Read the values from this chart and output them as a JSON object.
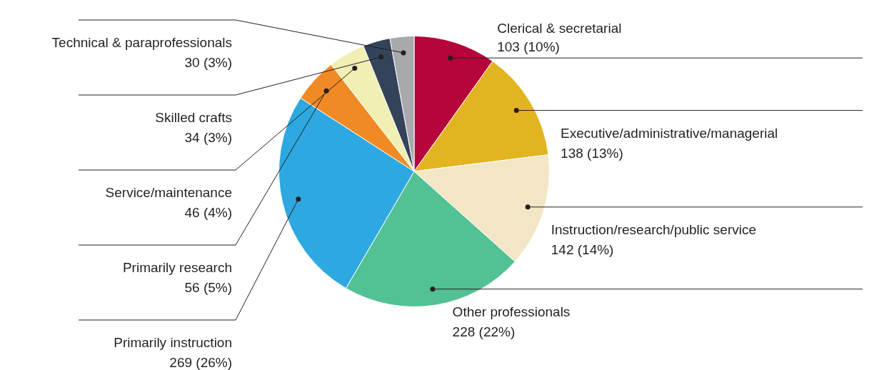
{
  "chart_data": {
    "type": "pie",
    "categories": [
      "Clerical & secretarial",
      "Executive/administrative/managerial",
      "Instruction/research/public service",
      "Other professionals",
      "Primarily instruction",
      "Primarily research",
      "Service/maintenance",
      "Skilled crafts",
      "Technical & paraprofessionals"
    ],
    "values": [
      103,
      138,
      142,
      228,
      269,
      56,
      46,
      34,
      30
    ],
    "value_labels": [
      "103 (10%)",
      "138 (13%)",
      "142 (14%)",
      "228 (22%)",
      "269 (26%)",
      "56 (5%)",
      "46 (4%)",
      "34 (3%)",
      "30 (3%)"
    ],
    "colors": [
      "#b5053a",
      "#e3b421",
      "#f3e6c6",
      "#52c194",
      "#2ea8e0",
      "#f08a24",
      "#f0efb4",
      "#34435a",
      "#a7a9ac"
    ],
    "legend": false
  }
}
